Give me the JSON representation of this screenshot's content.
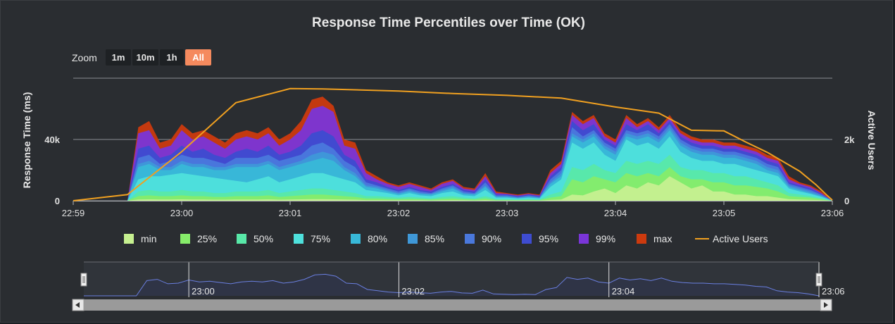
{
  "chart_data": {
    "type": "area",
    "title": "Response Time Percentiles over Time (OK)",
    "ylabel": "Response Time (ms)",
    "y2label": "Active Users",
    "ylim": [
      0,
      80000
    ],
    "y2lim": [
      0,
      4000
    ],
    "y_ticks": [
      {
        "value": 0,
        "label": "0"
      },
      {
        "value": 40000,
        "label": "40k"
      }
    ],
    "y2_ticks": [
      {
        "value": 0,
        "label": "0"
      },
      {
        "value": 2000,
        "label": "2k"
      }
    ],
    "x_ticks": [
      "22:59",
      "23:00",
      "23:01",
      "23:02",
      "23:03",
      "23:04",
      "23:05",
      "23:06"
    ],
    "xlim_minutes": [
      0,
      7
    ],
    "grid": true,
    "legend_position": "bottom",
    "x_minutes": [
      0,
      0.5,
      0.6,
      0.7,
      0.8,
      0.9,
      1.0,
      1.1,
      1.2,
      1.3,
      1.4,
      1.5,
      1.6,
      1.7,
      1.8,
      1.9,
      2.0,
      2.1,
      2.2,
      2.3,
      2.4,
      2.5,
      2.6,
      2.7,
      2.8,
      2.9,
      3.0,
      3.1,
      3.2,
      3.3,
      3.4,
      3.5,
      3.6,
      3.7,
      3.8,
      3.9,
      4.0,
      4.1,
      4.2,
      4.3,
      4.4,
      4.5,
      4.6,
      4.7,
      4.8,
      4.9,
      5.0,
      5.1,
      5.2,
      5.3,
      5.4,
      5.5,
      5.6,
      5.7,
      5.8,
      5.9,
      6.0,
      6.1,
      6.2,
      6.3,
      6.4,
      6.5,
      6.6,
      6.7,
      6.8,
      6.9,
      7.0
    ],
    "series": [
      {
        "name": "max",
        "color": "#cc3a0e",
        "values": [
          0,
          0,
          48000,
          52000,
          38000,
          40000,
          50000,
          44000,
          46000,
          42000,
          38000,
          44000,
          46000,
          44000,
          48000,
          40000,
          44000,
          52000,
          66000,
          68000,
          62000,
          40000,
          38000,
          20000,
          16000,
          12000,
          10000,
          12000,
          10000,
          8000,
          12000,
          14000,
          9000,
          8000,
          18000,
          6000,
          5000,
          4000,
          5000,
          4000,
          20000,
          26000,
          58000,
          52000,
          56000,
          44000,
          40000,
          56000,
          50000,
          54000,
          48000,
          56000,
          46000,
          42000,
          40000,
          40000,
          38000,
          38000,
          36000,
          34000,
          30000,
          28000,
          16000,
          12000,
          10000,
          6000,
          0
        ]
      },
      {
        "name": "99%",
        "color": "#7a35d8",
        "values": [
          0,
          0,
          44000,
          46000,
          34000,
          36000,
          46000,
          40000,
          42000,
          38000,
          34000,
          40000,
          42000,
          40000,
          44000,
          36000,
          40000,
          46000,
          60000,
          62000,
          58000,
          36000,
          34000,
          18000,
          14000,
          11000,
          9000,
          11000,
          9000,
          7000,
          11000,
          13000,
          8000,
          7000,
          16000,
          5000,
          4500,
          3500,
          4500,
          3500,
          18000,
          24000,
          56000,
          50000,
          54000,
          42000,
          38000,
          54000,
          48000,
          52000,
          46000,
          54000,
          44000,
          40000,
          38000,
          38000,
          36000,
          36000,
          34000,
          32000,
          28000,
          26000,
          14000,
          11000,
          9000,
          5000,
          0
        ]
      },
      {
        "name": "95%",
        "color": "#3e4cd0",
        "values": [
          0,
          0,
          34000,
          36000,
          28000,
          30000,
          36000,
          32000,
          34000,
          30000,
          28000,
          32000,
          34000,
          32000,
          36000,
          30000,
          32000,
          36000,
          44000,
          46000,
          42000,
          30000,
          26000,
          14000,
          12000,
          9000,
          7000,
          9000,
          7000,
          6000,
          9000,
          11000,
          7000,
          6000,
          14000,
          4000,
          4000,
          3000,
          4000,
          3000,
          16000,
          22000,
          52000,
          46000,
          50000,
          40000,
          36000,
          50000,
          46000,
          50000,
          44000,
          52000,
          42000,
          38000,
          36000,
          36000,
          34000,
          34000,
          32000,
          30000,
          26000,
          24000,
          12000,
          10000,
          8000,
          4500,
          0
        ]
      },
      {
        "name": "90%",
        "color": "#4a78dc",
        "values": [
          0,
          0,
          28000,
          30000,
          24000,
          26000,
          30000,
          28000,
          28000,
          26000,
          24000,
          28000,
          28000,
          28000,
          30000,
          26000,
          28000,
          30000,
          36000,
          38000,
          34000,
          26000,
          22000,
          12000,
          10000,
          8000,
          6000,
          8000,
          6000,
          5000,
          8000,
          10000,
          6000,
          5000,
          12000,
          3500,
          3500,
          2500,
          3500,
          2500,
          14000,
          20000,
          48000,
          42000,
          46000,
          38000,
          34000,
          46000,
          44000,
          46000,
          42000,
          50000,
          40000,
          36000,
          34000,
          34000,
          32000,
          32000,
          30000,
          28000,
          24000,
          22000,
          11000,
          9000,
          7000,
          4000,
          0
        ]
      },
      {
        "name": "85%",
        "color": "#3f98d8",
        "values": [
          0,
          0,
          24000,
          26000,
          22000,
          22000,
          26000,
          24000,
          24000,
          22000,
          22000,
          24000,
          24000,
          24000,
          26000,
          22000,
          24000,
          26000,
          30000,
          32000,
          30000,
          22000,
          18000,
          10000,
          9000,
          7000,
          5000,
          7000,
          5000,
          4500,
          7000,
          9000,
          5000,
          4500,
          10000,
          3000,
          3000,
          2000,
          3000,
          2000,
          12000,
          18000,
          44000,
          40000,
          44000,
          36000,
          32000,
          44000,
          42000,
          44000,
          40000,
          48000,
          38000,
          34000,
          32000,
          32000,
          30000,
          30000,
          28000,
          26000,
          22000,
          20000,
          10000,
          8000,
          6000,
          3500,
          0
        ]
      },
      {
        "name": "80%",
        "color": "#38b8d8",
        "values": [
          0,
          0,
          22000,
          24000,
          20000,
          20000,
          24000,
          22000,
          22000,
          20000,
          20000,
          22000,
          22000,
          22000,
          24000,
          20000,
          22000,
          24000,
          26000,
          28000,
          26000,
          20000,
          16000,
          9000,
          8000,
          6000,
          4500,
          6000,
          4500,
          4000,
          6000,
          8000,
          4500,
          4000,
          9000,
          2500,
          2500,
          1800,
          2500,
          1800,
          11000,
          16000,
          42000,
          38000,
          42000,
          34000,
          30000,
          42000,
          40000,
          42000,
          38000,
          46000,
          36000,
          32000,
          30000,
          30000,
          28000,
          28000,
          26000,
          24000,
          20000,
          18000,
          9000,
          7000,
          5000,
          3000,
          0
        ]
      },
      {
        "name": "75%",
        "color": "#4ee0dc",
        "values": [
          0,
          0,
          14000,
          16000,
          16000,
          17000,
          18000,
          17000,
          16000,
          15000,
          14000,
          13000,
          12000,
          14000,
          16000,
          12000,
          14000,
          16000,
          18000,
          18000,
          16000,
          14000,
          12000,
          7000,
          6000,
          5000,
          3500,
          5000,
          3500,
          3000,
          5000,
          6000,
          3500,
          3000,
          7000,
          2000,
          2000,
          1500,
          2000,
          1500,
          9000,
          14000,
          38000,
          34000,
          38000,
          30000,
          26000,
          40000,
          36000,
          38000,
          34000,
          42000,
          32000,
          28000,
          26000,
          26000,
          24000,
          24000,
          22000,
          20000,
          18000,
          16000,
          8000,
          6000,
          4500,
          2500,
          0
        ]
      },
      {
        "name": "50%",
        "color": "#58e8a8",
        "values": [
          0,
          0,
          6000,
          7000,
          6000,
          6000,
          7000,
          6000,
          6000,
          5000,
          5000,
          6000,
          6000,
          6000,
          7000,
          5000,
          6000,
          7000,
          8000,
          8000,
          7000,
          6000,
          5000,
          3000,
          3000,
          2500,
          2000,
          2500,
          2000,
          1500,
          2500,
          3000,
          2000,
          1500,
          3000,
          1000,
          1000,
          800,
          1000,
          800,
          4000,
          6000,
          22000,
          20000,
          24000,
          20000,
          18000,
          26000,
          24000,
          26000,
          24000,
          30000,
          22000,
          20000,
          20000,
          18000,
          18000,
          16000,
          16000,
          14000,
          12000,
          10000,
          5000,
          4000,
          3000,
          1500,
          0
        ]
      },
      {
        "name": "25%",
        "color": "#86ec6a",
        "values": [
          0,
          0,
          3000,
          3500,
          3000,
          3000,
          3500,
          3000,
          3000,
          2500,
          2500,
          3000,
          3000,
          3000,
          3500,
          2500,
          3000,
          3500,
          4000,
          4000,
          3500,
          3000,
          2500,
          1500,
          1500,
          1200,
          1000,
          1200,
          1000,
          800,
          1200,
          1500,
          1000,
          800,
          1500,
          500,
          500,
          400,
          500,
          400,
          2000,
          3000,
          14000,
          12000,
          16000,
          14000,
          12000,
          18000,
          16000,
          18000,
          16000,
          22000,
          16000,
          14000,
          14000,
          12000,
          12000,
          10000,
          10000,
          9000,
          8000,
          6000,
          3000,
          2500,
          2000,
          1000,
          0
        ]
      },
      {
        "name": "min",
        "color": "#c6f090",
        "values": [
          0,
          0,
          800,
          900,
          800,
          800,
          900,
          800,
          800,
          700,
          700,
          800,
          800,
          800,
          900,
          700,
          800,
          900,
          1000,
          1000,
          900,
          800,
          700,
          400,
          400,
          300,
          300,
          300,
          300,
          200,
          300,
          400,
          300,
          200,
          400,
          150,
          150,
          100,
          150,
          100,
          500,
          800,
          4000,
          3500,
          6000,
          8000,
          5000,
          10000,
          8000,
          12000,
          10000,
          16000,
          12000,
          8000,
          10000,
          6000,
          6000,
          4000,
          4000,
          3000,
          3000,
          2000,
          1000,
          800,
          600,
          300,
          0
        ]
      },
      {
        "name": "Active Users",
        "color": "#f0a020",
        "axis": "right",
        "points": [
          [
            0,
            0
          ],
          [
            0.5,
            200
          ],
          [
            1.0,
            1600
          ],
          [
            1.5,
            3200
          ],
          [
            2.0,
            3660
          ],
          [
            2.3,
            3650
          ],
          [
            3.0,
            3580
          ],
          [
            3.5,
            3500
          ],
          [
            4.0,
            3440
          ],
          [
            4.5,
            3350
          ],
          [
            5.0,
            3060
          ],
          [
            5.4,
            2860
          ],
          [
            5.7,
            2300
          ],
          [
            6.0,
            2280
          ],
          [
            6.2,
            1920
          ],
          [
            6.4,
            1580
          ],
          [
            6.7,
            960
          ],
          [
            6.85,
            520
          ],
          [
            6.95,
            180
          ],
          [
            7.0,
            20
          ]
        ]
      }
    ],
    "legend_items": [
      {
        "label": "min",
        "color": "#c6f090",
        "kind": "box"
      },
      {
        "label": "25%",
        "color": "#86ec6a",
        "kind": "box"
      },
      {
        "label": "50%",
        "color": "#58e8a8",
        "kind": "box"
      },
      {
        "label": "75%",
        "color": "#4ee0dc",
        "kind": "box"
      },
      {
        "label": "80%",
        "color": "#38b8d8",
        "kind": "box"
      },
      {
        "label": "85%",
        "color": "#3f98d8",
        "kind": "box"
      },
      {
        "label": "90%",
        "color": "#4a78dc",
        "kind": "box"
      },
      {
        "label": "95%",
        "color": "#3e4cd0",
        "kind": "box"
      },
      {
        "label": "99%",
        "color": "#7a35d8",
        "kind": "box"
      },
      {
        "label": "max",
        "color": "#cc3a0e",
        "kind": "box"
      },
      {
        "label": "Active Users",
        "color": "#f0a020",
        "kind": "line"
      }
    ],
    "navigator": {
      "x_ticks": [
        "23:00",
        "23:02",
        "23:04",
        "23:06"
      ],
      "range_minutes": [
        0,
        7
      ]
    }
  },
  "zoom": {
    "label": "Zoom",
    "buttons": [
      {
        "label": "1m",
        "active": false
      },
      {
        "label": "10m",
        "active": false
      },
      {
        "label": "1h",
        "active": false
      },
      {
        "label": "All",
        "active": true
      }
    ]
  },
  "colors": {
    "background": "#2a2d31",
    "active_button": "#f58a5e",
    "navigator_line": "#6a7fe0",
    "scrollbar": "#9a9a9a"
  }
}
